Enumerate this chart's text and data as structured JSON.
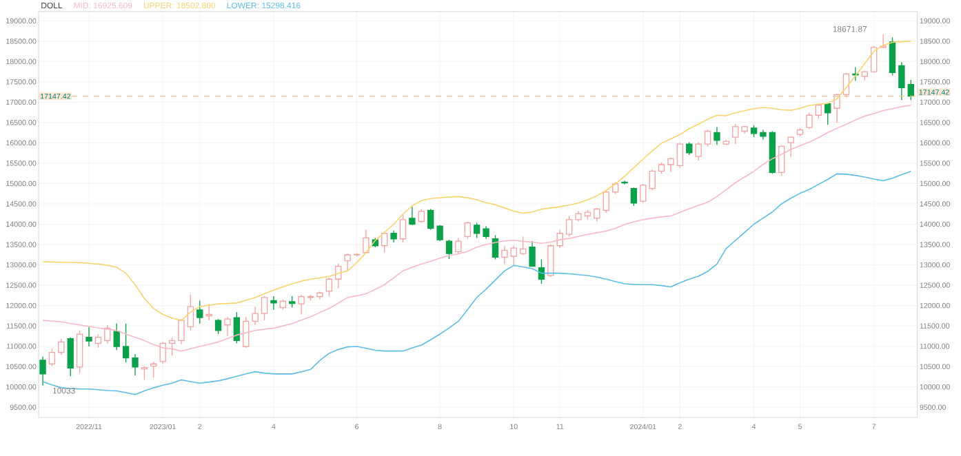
{
  "chart_data": {
    "type": "candlestick",
    "categories": [
      null,
      null,
      null,
      null,
      null,
      "2022/11",
      null,
      null,
      null,
      null,
      null,
      null,
      null,
      "2023/01",
      null,
      null,
      null,
      "2",
      null,
      null,
      null,
      null,
      null,
      null,
      null,
      "4",
      null,
      null,
      null,
      null,
      null,
      null,
      null,
      null,
      "6",
      null,
      null,
      null,
      null,
      null,
      null,
      null,
      null,
      "8",
      null,
      null,
      null,
      null,
      null,
      null,
      null,
      "10",
      null,
      null,
      null,
      null,
      "11",
      null,
      null,
      null,
      null,
      null,
      null,
      null,
      null,
      "2024/01",
      null,
      null,
      null,
      "2",
      null,
      null,
      null,
      null,
      null,
      null,
      null,
      "4",
      null,
      null,
      null,
      null,
      "5",
      null,
      null,
      null,
      null,
      null,
      null,
      null,
      "7",
      null,
      null,
      null,
      null
    ],
    "ohlc": [
      [
        10656,
        10746,
        10033,
        10318
      ],
      [
        10566,
        10937,
        10509,
        10847
      ],
      [
        10847,
        11185,
        10791,
        11106
      ],
      [
        11185,
        11219,
        10262,
        10464
      ],
      [
        10487,
        11388,
        10340,
        11298
      ],
      [
        11219,
        11478,
        10994,
        11129
      ],
      [
        11072,
        11298,
        10960,
        11219
      ],
      [
        11140,
        11523,
        11072,
        11444
      ],
      [
        11365,
        11557,
        10904,
        10994
      ],
      [
        10994,
        11557,
        10600,
        10712
      ],
      [
        10712,
        10802,
        10284,
        10487
      ],
      [
        10442,
        10509,
        10171,
        10476
      ],
      [
        10509,
        10622,
        10228,
        10566
      ],
      [
        10622,
        11106,
        10566,
        11072
      ],
      [
        11072,
        11219,
        10769,
        11140
      ],
      [
        11140,
        11669,
        11050,
        11636
      ],
      [
        11478,
        12266,
        11388,
        11973
      ],
      [
        11894,
        12120,
        11557,
        11703
      ],
      [
        11748,
        12041,
        11636,
        11782
      ],
      [
        11636,
        11669,
        11298,
        11388
      ],
      [
        11523,
        11726,
        11253,
        11669
      ],
      [
        11703,
        11838,
        11072,
        11140
      ],
      [
        10994,
        11726,
        10960,
        11613
      ],
      [
        11613,
        11973,
        11523,
        11805
      ],
      [
        11805,
        12232,
        11636,
        12198
      ],
      [
        12120,
        12232,
        11894,
        12063
      ],
      [
        11950,
        12153,
        11894,
        12108
      ],
      [
        12097,
        12232,
        11950,
        12052
      ],
      [
        12041,
        12266,
        11782,
        12221
      ],
      [
        12198,
        12266,
        12120,
        12221
      ],
      [
        12221,
        12345,
        12153,
        12311
      ],
      [
        12356,
        12683,
        12232,
        12649
      ],
      [
        12649,
        13020,
        12424,
        12964
      ],
      [
        13099,
        13279,
        12852,
        13246
      ],
      [
        13246,
        13290,
        13211,
        13257
      ],
      [
        13302,
        13865,
        13279,
        13662
      ],
      [
        13617,
        13662,
        13437,
        13471
      ],
      [
        13471,
        13809,
        13302,
        13775
      ],
      [
        13775,
        13842,
        13550,
        13640
      ],
      [
        13640,
        14226,
        13550,
        14113
      ],
      [
        14147,
        14429,
        13978,
        14000
      ],
      [
        14068,
        14372,
        14034,
        14316
      ],
      [
        14338,
        14372,
        13865,
        13899
      ],
      [
        13955,
        13978,
        13583,
        13617
      ],
      [
        13583,
        13617,
        13144,
        13279
      ],
      [
        13324,
        13662,
        13279,
        13583
      ],
      [
        13696,
        14068,
        13640,
        14034
      ],
      [
        13978,
        14034,
        13662,
        13775
      ],
      [
        13887,
        13955,
        13640,
        13696
      ],
      [
        13640,
        13730,
        13133,
        13189
      ],
      [
        13189,
        13471,
        13020,
        13358
      ],
      [
        13212,
        13471,
        12987,
        13414
      ],
      [
        13279,
        13696,
        13246,
        13392
      ],
      [
        13437,
        13583,
        12964,
        12964
      ],
      [
        12930,
        13133,
        12536,
        12649
      ],
      [
        12739,
        13506,
        12705,
        13471
      ],
      [
        13471,
        13865,
        13414,
        13775
      ],
      [
        13753,
        14203,
        13700,
        14113
      ],
      [
        14113,
        14316,
        14068,
        14259
      ],
      [
        14203,
        14350,
        14113,
        14293
      ],
      [
        14147,
        14400,
        14068,
        14372
      ],
      [
        14338,
        14822,
        14282,
        14789
      ],
      [
        14789,
        15036,
        14744,
        14991
      ],
      [
        15036,
        15070,
        14980,
        15013
      ],
      [
        14879,
        14902,
        14450,
        14519
      ],
      [
        14564,
        14991,
        14519,
        14958
      ],
      [
        14879,
        15340,
        14834,
        15306
      ],
      [
        15306,
        15520,
        15239,
        15464
      ],
      [
        15464,
        15644,
        15284,
        15610
      ],
      [
        15442,
        16005,
        15385,
        15971
      ],
      [
        15971,
        16016,
        15700,
        15757
      ],
      [
        15667,
        16016,
        15566,
        15971
      ],
      [
        15971,
        16320,
        15914,
        16286
      ],
      [
        16253,
        16387,
        15948,
        16061
      ],
      [
        15971,
        16073,
        15948,
        16039
      ],
      [
        16140,
        16466,
        15971,
        16399
      ],
      [
        16286,
        16410,
        16230,
        16399
      ],
      [
        16365,
        16433,
        16140,
        16230
      ],
      [
        16253,
        16320,
        16084,
        16163
      ],
      [
        16253,
        16287,
        15239,
        15273
      ],
      [
        15273,
        15948,
        15194,
        15915
      ],
      [
        16005,
        16163,
        15644,
        16140
      ],
      [
        16208,
        16365,
        16163,
        16320
      ],
      [
        16377,
        16748,
        16342,
        16680
      ],
      [
        16680,
        16962,
        16590,
        16928
      ],
      [
        16962,
        16984,
        16444,
        16737
      ],
      [
        16849,
        17210,
        16489,
        17187
      ],
      [
        17187,
        17727,
        17120,
        17694
      ],
      [
        17694,
        17862,
        17525,
        17671
      ],
      [
        17637,
        17772,
        17536,
        17750
      ],
      [
        17750,
        18381,
        17727,
        18347
      ],
      [
        18347,
        18671.87,
        18325,
        18381
      ],
      [
        18482,
        18594,
        17660,
        17727
      ],
      [
        17896,
        17986,
        17053,
        17356
      ],
      [
        17435,
        17547,
        17053,
        17147.42
      ]
    ],
    "series": [
      {
        "name": "MID: 16925.609",
        "type": "line",
        "color": "#f9b8c6",
        "values": [
          11636,
          11620,
          11600,
          11560,
          11523,
          11490,
          11450,
          11420,
          11388,
          11300,
          11220,
          11140,
          11040,
          10960,
          10937,
          10881,
          10940,
          10994,
          11050,
          11106,
          11190,
          11275,
          11330,
          11388,
          11420,
          11444,
          11500,
          11557,
          11640,
          11726,
          11830,
          11928,
          12060,
          12198,
          12240,
          12289,
          12400,
          12514,
          12680,
          12852,
          12940,
          13020,
          13090,
          13167,
          13230,
          13270,
          13330,
          13437,
          13500,
          13550,
          13590,
          13606,
          13580,
          13560,
          13530,
          13560,
          13617,
          13650,
          13700,
          13750,
          13790,
          13830,
          13900,
          13990,
          14060,
          14110,
          14150,
          14180,
          14203,
          14290,
          14380,
          14460,
          14541,
          14680,
          14850,
          15020,
          15160,
          15300,
          15470,
          15610,
          15720,
          15836,
          15930,
          16020,
          16130,
          16253,
          16360,
          16455,
          16560,
          16658,
          16720,
          16793,
          16840,
          16890,
          16926
        ]
      },
      {
        "name": "UPPER: 18502.800",
        "type": "line",
        "color": "#f9d36e",
        "values": [
          13077,
          13070,
          13065,
          13060,
          13054,
          13040,
          13020,
          12990,
          12942,
          12795,
          12514,
          12176,
          11928,
          11782,
          11692,
          11636,
          11838,
          11973,
          12010,
          12041,
          12050,
          12063,
          12130,
          12198,
          12290,
          12379,
          12460,
          12536,
          12600,
          12649,
          12680,
          12717,
          12790,
          12852,
          13054,
          13302,
          13600,
          13800,
          14000,
          14250,
          14450,
          14580,
          14630,
          14650,
          14670,
          14680,
          14650,
          14600,
          14530,
          14480,
          14400,
          14320,
          14270,
          14300,
          14370,
          14400,
          14430,
          14470,
          14520,
          14600,
          14700,
          14830,
          14990,
          15180,
          15390,
          15600,
          15800,
          15990,
          16100,
          16200,
          16350,
          16460,
          16580,
          16680,
          16670,
          16740,
          16790,
          16840,
          16870,
          16850,
          16810,
          16800,
          16850,
          16920,
          16950,
          16970,
          17080,
          17360,
          17650,
          17950,
          18250,
          18400,
          18470,
          18490,
          18503
        ]
      },
      {
        "name": "LOWER: 15298.416",
        "type": "line",
        "color": "#5bbde8",
        "values": [
          10127,
          10050,
          9980,
          9960,
          9950,
          9947,
          9930,
          9910,
          9902,
          9860,
          9812,
          9900,
          9980,
          10040,
          10093,
          10172,
          10130,
          10093,
          10120,
          10149,
          10200,
          10262,
          10320,
          10374,
          10340,
          10318,
          10318,
          10318,
          10370,
          10431,
          10650,
          10825,
          10920,
          10983,
          10994,
          10950,
          10900,
          10881,
          10881,
          10881,
          10960,
          11027,
          11160,
          11298,
          11450,
          11613,
          11900,
          12200,
          12401,
          12626,
          12850,
          12987,
          12950,
          12908,
          12795,
          12795,
          12795,
          12780,
          12760,
          12739,
          12700,
          12649,
          12590,
          12536,
          12520,
          12514,
          12514,
          12490,
          12458,
          12560,
          12650,
          12720,
          12840,
          13020,
          13400,
          13600,
          13800,
          14000,
          14150,
          14300,
          14500,
          14640,
          14760,
          14856,
          14980,
          15100,
          15239,
          15230,
          15200,
          15160,
          15110,
          15070,
          15130,
          15220,
          15298
        ]
      }
    ],
    "legend_title": "DOLL",
    "legend": "top left",
    "grid": true,
    "ylim": [
      9250,
      19230
    ],
    "yticks": [
      {
        "value": 9500,
        "label": "9500.00"
      },
      {
        "value": 10000,
        "label": "10000.00"
      },
      {
        "value": 10500,
        "label": "10500.00"
      },
      {
        "value": 11000,
        "label": "11000.00"
      },
      {
        "value": 11500,
        "label": "11500.00"
      },
      {
        "value": 12000,
        "label": "12000.00"
      },
      {
        "value": 12500,
        "label": "12500.00"
      },
      {
        "value": 13000,
        "label": "13000.00"
      },
      {
        "value": 13500,
        "label": "13500.00"
      },
      {
        "value": 14000,
        "label": "14000.00"
      },
      {
        "value": 14500,
        "label": "14500.00"
      },
      {
        "value": 15000,
        "label": "15000.00"
      },
      {
        "value": 15500,
        "label": "15500.00"
      },
      {
        "value": 16000,
        "label": "16000.00"
      },
      {
        "value": 16500,
        "label": "16500.00"
      },
      {
        "value": 17000,
        "label": "17000.00"
      },
      {
        "value": 17500,
        "label": "17500.00"
      },
      {
        "value": 18000,
        "label": "18000.00"
      },
      {
        "value": 18500,
        "label": "18500.00"
      },
      {
        "value": 19000,
        "label": "19000.00"
      }
    ],
    "y2lim": [
      9250,
      19230
    ],
    "y2ticks": [
      {
        "value": 9500,
        "label": "9500.00"
      },
      {
        "value": 10000,
        "label": "10000.00"
      },
      {
        "value": 10500,
        "label": "10500.00"
      },
      {
        "value": 11000,
        "label": "11000.00"
      },
      {
        "value": 11500,
        "label": "11500.00"
      },
      {
        "value": 12000,
        "label": "12000.00"
      },
      {
        "value": 12500,
        "label": "12500.00"
      },
      {
        "value": 13000,
        "label": "13000.00"
      },
      {
        "value": 13500,
        "label": "13500.00"
      },
      {
        "value": 14000,
        "label": "14000.00"
      },
      {
        "value": 14500,
        "label": "14500.00"
      },
      {
        "value": 15000,
        "label": "15000.00"
      },
      {
        "value": 15500,
        "label": "15500.00"
      },
      {
        "value": 16000,
        "label": "16000.00"
      },
      {
        "value": 16500,
        "label": "16500.00"
      },
      {
        "value": 17000,
        "label": "17000.00"
      },
      {
        "value": 17500,
        "label": "17500.00"
      },
      {
        "value": 18000,
        "label": "18000.00"
      },
      {
        "value": 18500,
        "label": "18500.00"
      },
      {
        "value": 19000,
        "label": "19000.00"
      }
    ],
    "ref_lines": [
      {
        "axis": "y",
        "value": 17147.42,
        "label": "17147.42",
        "color": "#f7c08f",
        "line_style": "dashed"
      }
    ],
    "annotations": [
      "18671.87",
      "10033"
    ]
  }
}
